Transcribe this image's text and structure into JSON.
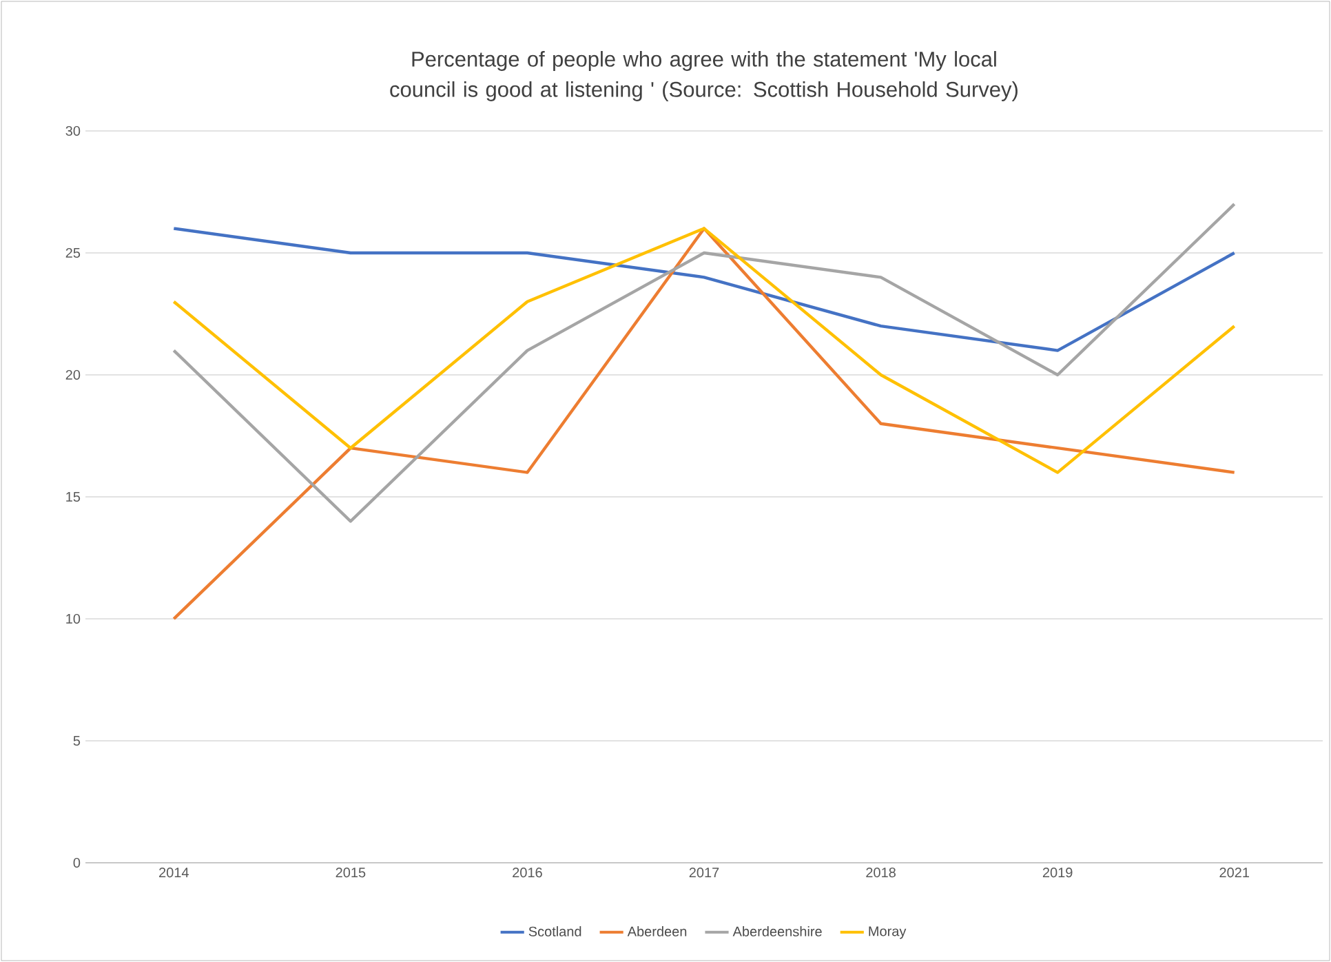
{
  "chart_data": {
    "type": "line",
    "title": "Percentage of people who agree with the statement 'My local council is good at listening ' (Source: Scottish Household Survey)",
    "categories": [
      "2014",
      "2015",
      "2016",
      "2017",
      "2018",
      "2019",
      "2021"
    ],
    "series": [
      {
        "name": "Scotland",
        "color": "#4472c4",
        "values": [
          26,
          25,
          25,
          24,
          22,
          21,
          25
        ]
      },
      {
        "name": "Aberdeen",
        "color": "#ed7d31",
        "values": [
          10,
          17,
          16,
          26,
          18,
          17,
          16
        ]
      },
      {
        "name": "Aberdeenshire",
        "color": "#a5a5a5",
        "values": [
          21,
          14,
          21,
          25,
          24,
          20,
          27
        ]
      },
      {
        "name": "Moray",
        "color": "#ffc000",
        "values": [
          23,
          17,
          23,
          26,
          20,
          16,
          22
        ]
      }
    ],
    "ylim": [
      0,
      30
    ],
    "yticks": [
      0,
      5,
      10,
      15,
      20,
      25,
      30
    ],
    "grid": "y",
    "legend": "bottom"
  }
}
